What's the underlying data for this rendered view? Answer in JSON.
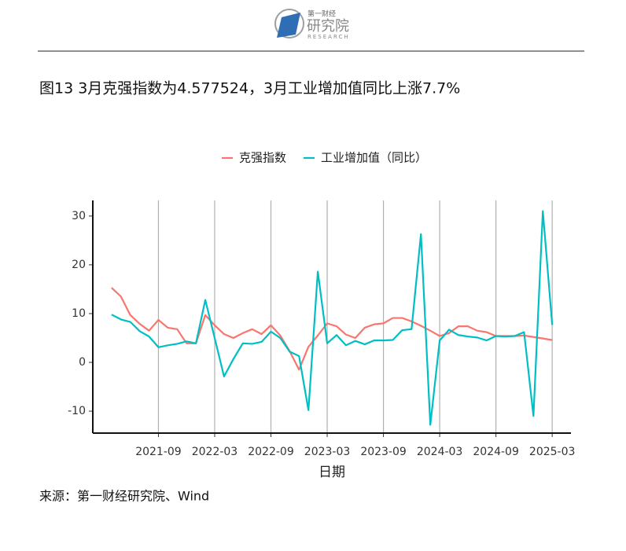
{
  "header": {
    "logo_top": "第一财经",
    "logo_main": "研究院",
    "logo_sub": "RESEARCH"
  },
  "chart_data": {
    "type": "line",
    "title": "图13 3月克强指数为4.577524，3月工业增加值同比上涨7.7%",
    "xlabel": "日期",
    "x": [
      "2021-04",
      "2021-05",
      "2021-06",
      "2021-07",
      "2021-08",
      "2021-09",
      "2021-10",
      "2021-11",
      "2021-12",
      "2022-01",
      "2022-02",
      "2022-03",
      "2022-04",
      "2022-05",
      "2022-06",
      "2022-07",
      "2022-08",
      "2022-09",
      "2022-10",
      "2022-11",
      "2022-12",
      "2023-01",
      "2023-02",
      "2023-03",
      "2023-04",
      "2023-05",
      "2023-06",
      "2023-07",
      "2023-08",
      "2023-09",
      "2023-10",
      "2023-11",
      "2023-12",
      "2024-01",
      "2024-02",
      "2024-03",
      "2024-04",
      "2024-05",
      "2024-06",
      "2024-07",
      "2024-08",
      "2024-09",
      "2024-10",
      "2024-11",
      "2024-12",
      "2025-01",
      "2025-02",
      "2025-03"
    ],
    "series": [
      {
        "name": "克强指数",
        "color": "#f8766d",
        "values": [
          15.3,
          13.5,
          9.7,
          7.9,
          6.5,
          8.7,
          7.1,
          6.8,
          3.9,
          3.9,
          9.7,
          7.6,
          5.8,
          5.0,
          6.0,
          6.8,
          5.8,
          7.6,
          5.5,
          2.3,
          -1.5,
          3.2,
          5.5,
          8.0,
          7.4,
          5.7,
          5.0,
          7.1,
          7.8,
          8.0,
          9.1,
          9.1,
          8.4,
          7.5,
          6.5,
          5.4,
          6.0,
          7.4,
          7.4,
          6.5,
          6.2,
          5.4,
          5.4,
          5.4,
          5.5,
          5.2,
          4.9,
          4.577524
        ]
      },
      {
        "name": "工业增加值（同比）",
        "color": "#00bfc4",
        "values": [
          9.8,
          8.8,
          8.3,
          6.4,
          5.3,
          3.1,
          3.5,
          3.8,
          4.3,
          3.9,
          12.8,
          5.0,
          -2.9,
          0.7,
          3.9,
          3.8,
          4.2,
          6.3,
          5.0,
          2.2,
          1.3,
          -9.8,
          18.6,
          3.9,
          5.6,
          3.5,
          4.4,
          3.7,
          4.5,
          4.5,
          4.6,
          6.6,
          6.8,
          26.3,
          -12.8,
          4.5,
          6.7,
          5.6,
          5.3,
          5.1,
          4.5,
          5.4,
          5.3,
          5.4,
          6.2,
          -11.0,
          31.0,
          7.7
        ]
      }
    ],
    "xlim": [
      "2021-02",
      "2025-05"
    ],
    "xticks": [
      "2021-09",
      "2022-03",
      "2022-09",
      "2023-03",
      "2023-09",
      "2024-03",
      "2024-09",
      "2025-03"
    ],
    "ylim": [
      -14.5,
      33.2
    ],
    "yticks": [
      -10,
      0,
      10,
      20,
      30
    ],
    "grid": "x",
    "legend": "top"
  },
  "source": "来源：第一财经研究院、Wind"
}
